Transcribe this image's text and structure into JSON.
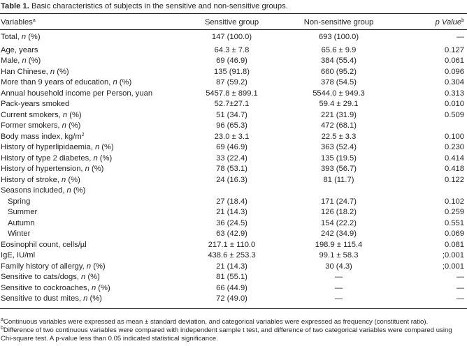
{
  "caption": {
    "label": "Table 1.",
    "text": "Basic characteristics of subjects in the sensitive and non-sensitive groups."
  },
  "columns": {
    "variables": "Variables",
    "variables_sup": "a",
    "sensitive": "Sensitive group",
    "nonsensitive": "Non-sensitive group",
    "pvalue": "p Value",
    "pvalue_sup": "b"
  },
  "rows": [
    {
      "variable": "Total, n (%)",
      "sensitive": "147 (100.0)",
      "nonsensitive": "693 (100.0)",
      "p": "—"
    },
    {
      "variable": "Age, years",
      "sensitive": "64.3 ± 7.8",
      "nonsensitive": "65.6 ± 9.9",
      "p": "0.127"
    },
    {
      "variable": "Male, n (%)",
      "sensitive": "69 (46.9)",
      "nonsensitive": "384 (55.4)",
      "p": "0.061"
    },
    {
      "variable": "Han Chinese, n (%)",
      "sensitive": "135 (91.8)",
      "nonsensitive": "660 (95.2)",
      "p": "0.096"
    },
    {
      "variable": "More than 9 years of education, n (%)",
      "sensitive": "87 (59.2)",
      "nonsensitive": "378 (54.5)",
      "p": "0.304"
    },
    {
      "variable": "Annual household income per Person, yuan",
      "sensitive": "5457.8 ± 899.1",
      "nonsensitive": "5544.0 ± 949.3",
      "p": "0.313"
    },
    {
      "variable": "Pack-years smoked",
      "sensitive": "52.7±27.1",
      "nonsensitive": "59.4 ± 29.1",
      "p": "0.010"
    },
    {
      "variable": "Current smokers, n (%)",
      "sensitive": "51 (34.7)",
      "nonsensitive": "221 (31.9)",
      "p": "0.509"
    },
    {
      "variable": "Former smokers, n (%)",
      "sensitive": "96 (65.3)",
      "nonsensitive": "472 (68.1)",
      "p": ""
    },
    {
      "variable": "Body mass index, kg/m",
      "variable_sup": "2",
      "sensitive": "23.0 ± 3.1",
      "nonsensitive": "22.5 ± 3.3",
      "p": "0.100"
    },
    {
      "variable": "History of hyperlipidaemia, n (%)",
      "sensitive": "69 (46.9)",
      "nonsensitive": "363 (52.4)",
      "p": "0.230"
    },
    {
      "variable": "History of type 2 diabetes, n (%)",
      "sensitive": "33 (22.4)",
      "nonsensitive": "135 (19.5)",
      "p": "0.414"
    },
    {
      "variable": "History of hypertension, n (%)",
      "sensitive": "78 (53.1)",
      "nonsensitive": "393 (56.7)",
      "p": "0.418"
    },
    {
      "variable": "History of stroke, n (%)",
      "sensitive": "24 (16.3)",
      "nonsensitive": "81 (11.7)",
      "p": "0.122"
    },
    {
      "variable": "Seasons included, n (%)",
      "sensitive": "",
      "nonsensitive": "",
      "p": ""
    },
    {
      "variable": "Spring",
      "indent": true,
      "sensitive": "27 (18.4)",
      "nonsensitive": "171 (24.7)",
      "p": "0.102"
    },
    {
      "variable": "Summer",
      "indent": true,
      "sensitive": "21 (14.3)",
      "nonsensitive": "126 (18.2)",
      "p": "0.259"
    },
    {
      "variable": "Autumn",
      "indent": true,
      "sensitive": "36 (24.5)",
      "nonsensitive": "154 (22.2)",
      "p": "0.551"
    },
    {
      "variable": "Winter",
      "indent": true,
      "sensitive": "63 (42.9)",
      "nonsensitive": "242 (34.9)",
      "p": "0.069"
    },
    {
      "variable": "Eosinophil count, cells/µl",
      "sensitive": "217.1 ± 110.0",
      "nonsensitive": "198.9 ± 115.4",
      "p": "0.081"
    },
    {
      "variable": "IgE, IU/ml",
      "sensitive": "438.6 ± 253.3",
      "nonsensitive": "99.1 ± 58.3",
      "p": ";0.001"
    },
    {
      "variable": "Family history of allergy, n (%)",
      "sensitive": "21 (14.3)",
      "nonsensitive": "30 (4.3)",
      "p": ";0.001"
    },
    {
      "variable": "Sensitive to cats/dogs, n (%)",
      "sensitive": "81 (55.1)",
      "nonsensitive": "—",
      "p": "—"
    },
    {
      "variable": "Sensitive to cockroaches, n (%)",
      "sensitive": "66 (44.9)",
      "nonsensitive": "—",
      "p": "—"
    },
    {
      "variable": "Sensitive to dust mites, n (%)",
      "sensitive": "72 (49.0)",
      "nonsensitive": "—",
      "p": "—"
    }
  ],
  "footnotes": [
    {
      "mark": "a",
      "text": "Continuous variables were expressed as mean ± standard deviation, and categorical variables were expressed as frequency (constituent ratio)."
    },
    {
      "mark": "b",
      "text": "Difference of two continuous variables were compared with independent sample t test, and difference of two categorical variables were compared using Chi-square test. A p-value less than 0.05 indicated statistical significance."
    }
  ]
}
